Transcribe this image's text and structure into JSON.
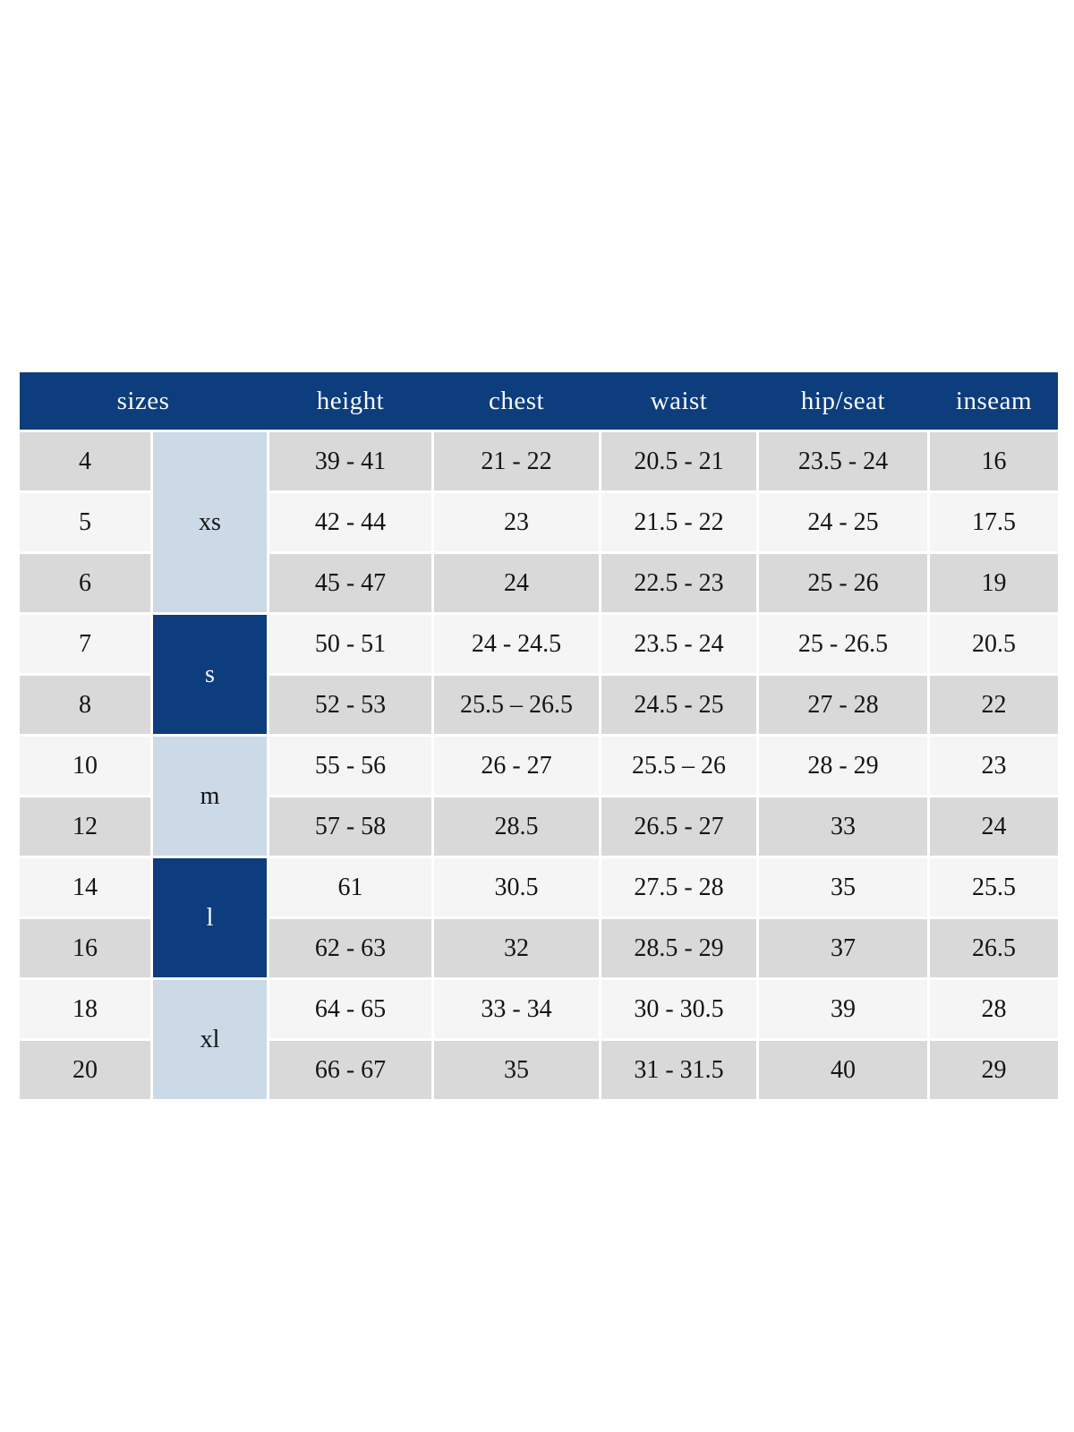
{
  "page": {
    "background": "#ffffff"
  },
  "colors": {
    "header_bg": "#0d3d7d",
    "header_text": "#fafcff",
    "group_dark_bg": "#0d3d7d",
    "group_light_bg": "#ccd9e6",
    "row_shaded_bg": "#d9d9d9",
    "row_plain_bg": "#f5f5f5",
    "body_text": "#141414"
  },
  "size_chart": {
    "header": [
      {
        "label": "sizes",
        "colspan": 2
      },
      {
        "label": "height",
        "colspan": 1
      },
      {
        "label": "chest",
        "colspan": 1
      },
      {
        "label": "waist",
        "colspan": 1
      },
      {
        "label": "hip/seat",
        "colspan": 1
      },
      {
        "label": "inseam",
        "colspan": 1
      }
    ],
    "groups": [
      {
        "label": "xs",
        "row_span": 3,
        "variant": "light"
      },
      {
        "label": "s",
        "row_span": 2,
        "variant": "dark"
      },
      {
        "label": "m",
        "row_span": 2,
        "variant": "light"
      },
      {
        "label": "l",
        "row_span": 2,
        "variant": "dark"
      },
      {
        "label": "xl",
        "row_span": 2,
        "variant": "light"
      }
    ],
    "rows": [
      {
        "size": "4",
        "height": "39 - 41",
        "chest": "21 - 22",
        "waist": "20.5 - 21",
        "hip_seat": "23.5 - 24",
        "inseam": "16",
        "shade": "shaded"
      },
      {
        "size": "5",
        "height": "42 - 44",
        "chest": "23",
        "waist": "21.5 - 22",
        "hip_seat": "24 - 25",
        "inseam": "17.5",
        "shade": "plain"
      },
      {
        "size": "6",
        "height": "45 - 47",
        "chest": "24",
        "waist": "22.5 - 23",
        "hip_seat": "25 - 26",
        "inseam": "19",
        "shade": "shaded"
      },
      {
        "size": "7",
        "height": "50 - 51",
        "chest": "24 - 24.5",
        "waist": "23.5 - 24",
        "hip_seat": "25 - 26.5",
        "inseam": "20.5",
        "shade": "plain"
      },
      {
        "size": "8",
        "height": "52 - 53",
        "chest": "25.5 – 26.5",
        "waist": "24.5 - 25",
        "hip_seat": "27 - 28",
        "inseam": "22",
        "shade": "shaded"
      },
      {
        "size": "10",
        "height": "55 - 56",
        "chest": "26 - 27",
        "waist": "25.5 – 26",
        "hip_seat": "28 - 29",
        "inseam": "23",
        "shade": "plain"
      },
      {
        "size": "12",
        "height": "57 - 58",
        "chest": "28.5",
        "waist": "26.5 - 27",
        "hip_seat": "33",
        "inseam": "24",
        "shade": "shaded"
      },
      {
        "size": "14",
        "height": "61",
        "chest": "30.5",
        "waist": "27.5 - 28",
        "hip_seat": "35",
        "inseam": "25.5",
        "shade": "plain"
      },
      {
        "size": "16",
        "height": "62 - 63",
        "chest": "32",
        "waist": "28.5 - 29",
        "hip_seat": "37",
        "inseam": "26.5",
        "shade": "shaded"
      },
      {
        "size": "18",
        "height": "64 - 65",
        "chest": "33 - 34",
        "waist": "30 - 30.5",
        "hip_seat": "39",
        "inseam": "28",
        "shade": "plain"
      },
      {
        "size": "20",
        "height": "66 - 67",
        "chest": "35",
        "waist": "31 - 31.5",
        "hip_seat": "40",
        "inseam": "29",
        "shade": "shaded"
      }
    ]
  }
}
